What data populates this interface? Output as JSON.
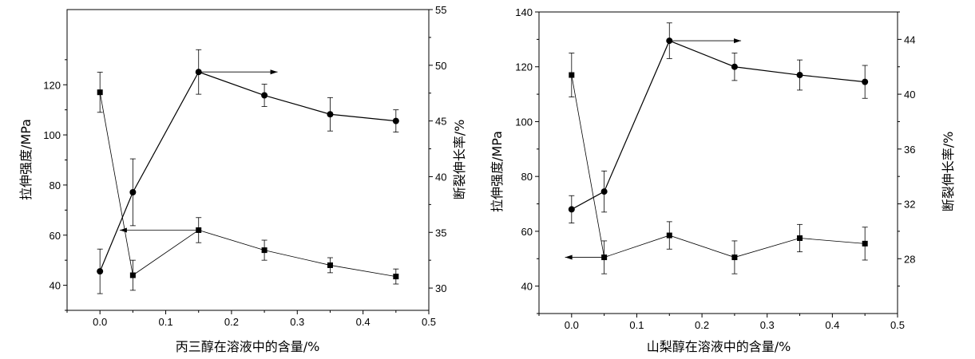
{
  "chart_data": [
    {
      "type": "line",
      "xlabel": "丙三醇在溶液中的含量/%",
      "ylabel_left": "拉伸强度/MPa",
      "ylabel_right": "断裂伸长率/%",
      "xlim": [
        -0.05,
        0.5
      ],
      "ylim_left": [
        30,
        150
      ],
      "ylim_right": [
        28,
        55
      ],
      "x_ticks": [
        "0.0",
        "0.1",
        "0.2",
        "0.3",
        "0.4",
        "0.5"
      ],
      "y_left_ticks": [
        "40",
        "60",
        "80",
        "100",
        "120"
      ],
      "y_right_ticks": [
        "30",
        "35",
        "40",
        "45",
        "50",
        "55"
      ],
      "series": [
        {
          "name": "拉伸强度",
          "axis": "left",
          "marker": "square",
          "x": [
            0.0,
            0.05,
            0.15,
            0.25,
            0.35,
            0.45
          ],
          "values": [
            117,
            44,
            62,
            54,
            48,
            43.5
          ],
          "errors": [
            8,
            6,
            5,
            4,
            3,
            3
          ]
        },
        {
          "name": "断裂伸长率",
          "axis": "right",
          "marker": "circle",
          "x": [
            0.0,
            0.05,
            0.15,
            0.25,
            0.35,
            0.45
          ],
          "values": [
            31.5,
            38.6,
            49.4,
            47.3,
            45.6,
            45.0
          ],
          "errors": [
            2.0,
            3.0,
            2.0,
            1.0,
            1.5,
            1.0
          ]
        }
      ],
      "arrows": [
        {
          "direction": "right",
          "x": 0.15,
          "axis": "right",
          "y": 49.4,
          "length": 0.12
        },
        {
          "direction": "left",
          "x": 0.15,
          "axis": "left",
          "y": 62,
          "length": 0.12
        }
      ]
    },
    {
      "type": "line",
      "xlabel": "山梨醇在溶液中的含量/%",
      "ylabel_left": "拉伸强度/MPa",
      "ylabel_right": "断裂伸长率/%",
      "xlim": [
        -0.05,
        0.5
      ],
      "ylim_left": [
        30,
        140
      ],
      "ylim_right": [
        24,
        46
      ],
      "x_ticks": [
        "0.0",
        "0.1",
        "0.2",
        "0.3",
        "0.4",
        "0.5"
      ],
      "y_left_ticks": [
        "40",
        "60",
        "80",
        "100",
        "120",
        "140"
      ],
      "y_right_ticks": [
        "28",
        "32",
        "36",
        "40",
        "44"
      ],
      "series": [
        {
          "name": "拉伸强度",
          "axis": "left",
          "marker": "square",
          "x": [
            0.0,
            0.05,
            0.15,
            0.25,
            0.35,
            0.45
          ],
          "values": [
            117,
            50.5,
            58.5,
            50.5,
            57.5,
            55.5
          ],
          "errors": [
            8,
            6,
            5,
            6,
            5,
            6
          ]
        },
        {
          "name": "断裂伸长率",
          "axis": "right",
          "marker": "circle",
          "x": [
            0.0,
            0.05,
            0.15,
            0.25,
            0.35,
            0.45
          ],
          "values": [
            31.6,
            32.9,
            43.9,
            42.0,
            41.4,
            40.9
          ],
          "errors": [
            1.0,
            1.5,
            1.3,
            1.0,
            1.1,
            1.2
          ]
        }
      ],
      "arrows": [
        {
          "direction": "right",
          "x": 0.15,
          "axis": "right",
          "y": 43.9,
          "length": 0.11
        },
        {
          "direction": "left",
          "x": 0.05,
          "axis": "left",
          "y": 50.5,
          "length": 0.06
        }
      ]
    }
  ]
}
